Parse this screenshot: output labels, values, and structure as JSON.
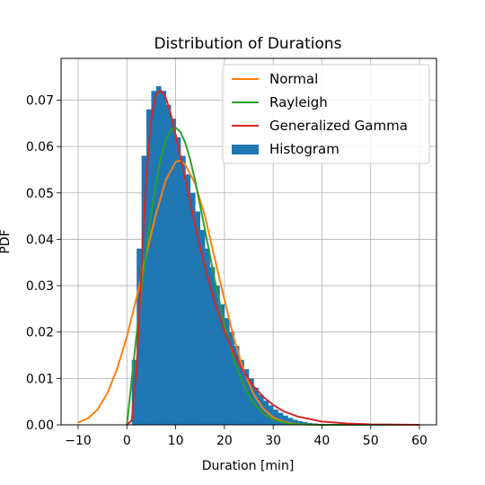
{
  "chart_data": {
    "type": "histogram",
    "title": "Distribution of Durations",
    "xlabel": "Duration [min]",
    "ylabel": "PDF",
    "xlim": [
      -13.5,
      63.5
    ],
    "ylim": [
      0,
      0.079
    ],
    "xticks": [
      -10,
      0,
      10,
      20,
      30,
      40,
      50,
      60
    ],
    "yticks": [
      0.0,
      0.01,
      0.02,
      0.03,
      0.04,
      0.05,
      0.06,
      0.07
    ],
    "grid": true,
    "legend": {
      "placement": "top-right",
      "entries": [
        {
          "label": "Normal",
          "kind": "line",
          "color": "#ff7f0e"
        },
        {
          "label": "Rayleigh",
          "kind": "line",
          "color": "#2ca02c"
        },
        {
          "label": "Generalized Gamma",
          "kind": "line",
          "color": "#d62728"
        },
        {
          "label": "Histogram",
          "kind": "patch",
          "color": "#1f77b4"
        }
      ]
    },
    "histogram": {
      "name": "Histogram",
      "color": "#1f77b4",
      "x": [
        0.5,
        1.5,
        2.5,
        3.5,
        4.5,
        5.5,
        6.5,
        7.5,
        8.5,
        9.5,
        10.5,
        11.5,
        12.5,
        13.5,
        14.5,
        15.5,
        16.5,
        17.5,
        18.5,
        19.5,
        20.5,
        21.5,
        22.5,
        23.5,
        24.5,
        25.5,
        26.5,
        27.5,
        28.5,
        29.5,
        30.5,
        31.5,
        32.5,
        33.5,
        34.5,
        35.5,
        36.5,
        37.5,
        38.5,
        39.5,
        40.5,
        41.5,
        42.5,
        43.5,
        44.5
      ],
      "values": [
        0.0,
        0.014,
        0.038,
        0.058,
        0.068,
        0.072,
        0.073,
        0.072,
        0.069,
        0.066,
        0.062,
        0.058,
        0.054,
        0.05,
        0.046,
        0.042,
        0.038,
        0.034,
        0.03,
        0.026,
        0.023,
        0.02,
        0.017,
        0.014,
        0.012,
        0.01,
        0.008,
        0.0065,
        0.0052,
        0.0042,
        0.0033,
        0.0026,
        0.002,
        0.0015,
        0.0011,
        0.0008,
        0.0006,
        0.0004,
        0.0003,
        0.0002,
        0.00015,
        0.0001,
        7e-05,
        5e-05,
        3e-05
      ]
    },
    "series": [
      {
        "name": "Normal",
        "color": "#ff7f0e",
        "x": [
          -10,
          -8,
          -6,
          -4,
          -2,
          0,
          2,
          4,
          6,
          8,
          10,
          11,
          12,
          14,
          16,
          18,
          20,
          22,
          24,
          26,
          28,
          30,
          32,
          34,
          36,
          40,
          45,
          50,
          60
        ],
        "y": [
          0.0005,
          0.0014,
          0.0033,
          0.0068,
          0.0121,
          0.019,
          0.0275,
          0.0368,
          0.0456,
          0.0528,
          0.0567,
          0.057,
          0.056,
          0.052,
          0.045,
          0.036,
          0.027,
          0.0185,
          0.0115,
          0.0066,
          0.0034,
          0.0016,
          0.0007,
          0.0003,
          0.0001,
          0.0,
          0.0,
          0.0,
          0.0
        ]
      },
      {
        "name": "Rayleigh",
        "color": "#2ca02c",
        "x": [
          0,
          1,
          2,
          3,
          4,
          5,
          6,
          7,
          8,
          9,
          10,
          11,
          12,
          13,
          14,
          16,
          18,
          20,
          22,
          24,
          26,
          28,
          30,
          32,
          34,
          36,
          40,
          45,
          50,
          60
        ],
        "y": [
          0.0,
          0.0098,
          0.0196,
          0.029,
          0.0378,
          0.0457,
          0.0524,
          0.0578,
          0.0615,
          0.0636,
          0.0641,
          0.0631,
          0.0607,
          0.0571,
          0.0526,
          0.0421,
          0.0313,
          0.0216,
          0.0139,
          0.0083,
          0.0046,
          0.0024,
          0.0012,
          0.0005,
          0.0002,
          0.0001,
          0.0,
          0.0,
          0.0,
          0.0
        ]
      },
      {
        "name": "Generalized Gamma",
        "color": "#d62728",
        "x": [
          0,
          1,
          2,
          3,
          4,
          5,
          6,
          7,
          8,
          9,
          10,
          11,
          12,
          13,
          14,
          15,
          16,
          18,
          20,
          22,
          24,
          26,
          28,
          30,
          32,
          35,
          40,
          45,
          50,
          60
        ],
        "y": [
          0.0,
          0.001,
          0.012,
          0.034,
          0.054,
          0.066,
          0.0715,
          0.072,
          0.0705,
          0.067,
          0.0625,
          0.0578,
          0.0528,
          0.0478,
          0.043,
          0.0384,
          0.034,
          0.0265,
          0.0202,
          0.0152,
          0.0113,
          0.0083,
          0.006,
          0.0043,
          0.003,
          0.0018,
          0.0007,
          0.0003,
          0.0001,
          0.0
        ]
      }
    ]
  }
}
